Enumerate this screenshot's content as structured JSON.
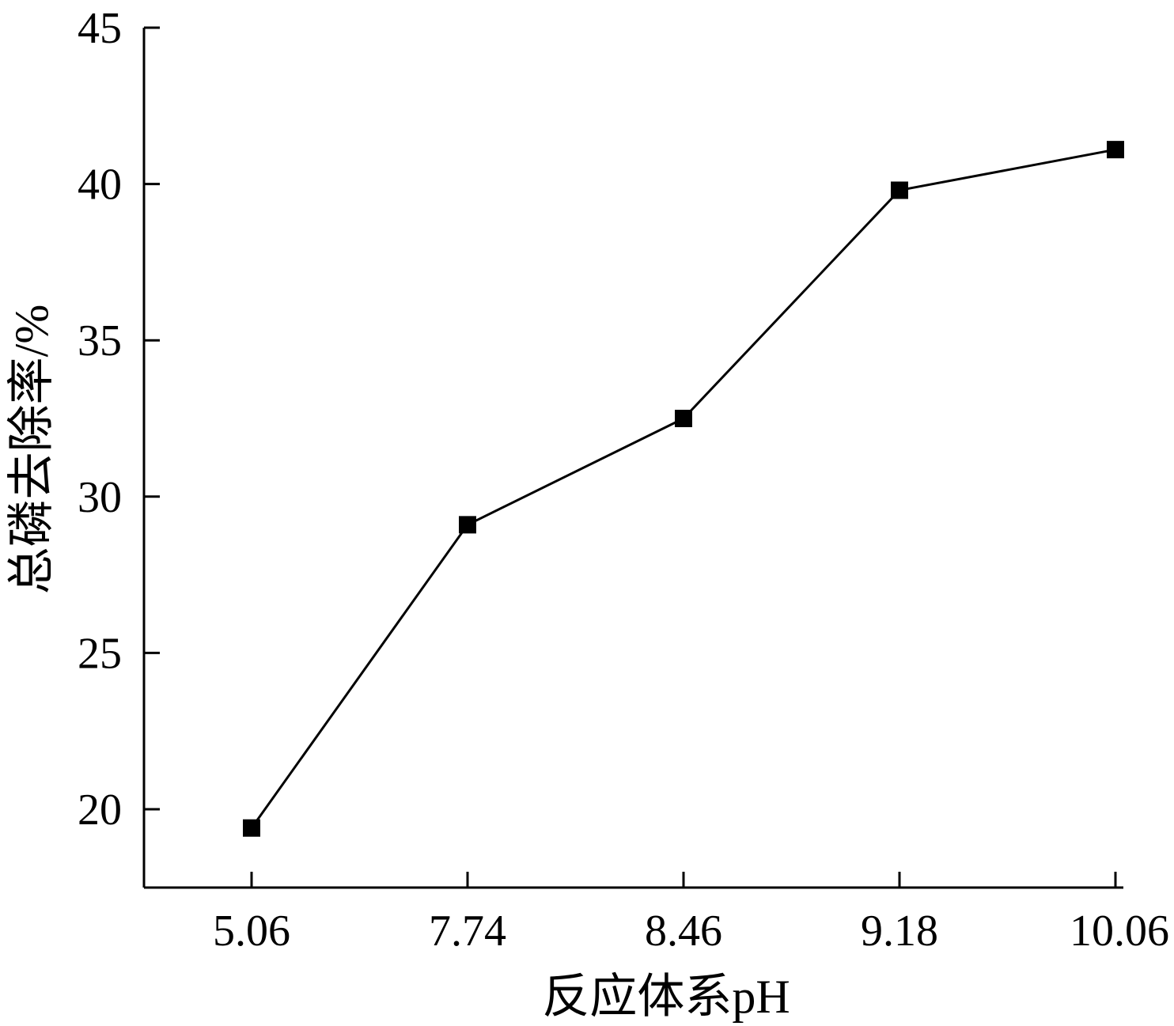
{
  "chart_data": {
    "type": "line",
    "categories": [
      "5.06",
      "7.74",
      "8.46",
      "9.18",
      "10.06"
    ],
    "series": [
      {
        "values": [
          19.4,
          29.1,
          32.5,
          39.8,
          41.1
        ]
      }
    ],
    "xlabel": "反应体系pH",
    "ylabel": "总磷去除率/%",
    "ylim": [
      17.5,
      45
    ],
    "yticks": [
      "20",
      "25",
      "30",
      "35",
      "40",
      "45"
    ],
    "ytick_values": [
      20,
      25,
      30,
      35,
      40,
      45
    ],
    "grid": false,
    "marker": "square",
    "line_color": "#000000",
    "marker_color": "#000000"
  }
}
